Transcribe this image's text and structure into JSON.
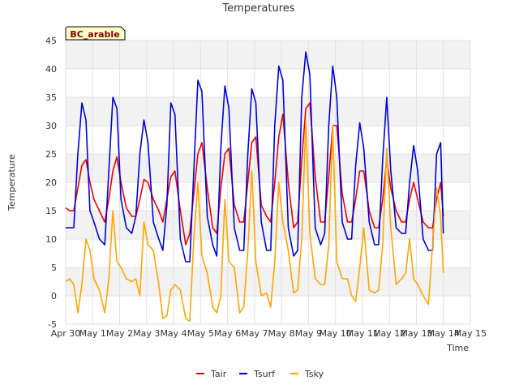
{
  "colors": {
    "Tair": "#ee0000",
    "Tsurf": "#0000dd",
    "Tsky": "#ffa500",
    "band": "#f2f2f2",
    "grid": "#e2e2e2",
    "site_label_bg": "#ffffc8"
  },
  "chart_data": {
    "type": "line",
    "title": "Temperatures",
    "xlabel": "Time",
    "ylabel": "Temperature",
    "site_label": "BC_arable",
    "xlim": [
      0,
      15
    ],
    "ylim": [
      -5,
      45
    ],
    "grid": true,
    "legend_position": "bottom",
    "x_ticks": [
      {
        "value": 0,
        "label": "Apr 30"
      },
      {
        "value": 1,
        "label": "May 1"
      },
      {
        "value": 2,
        "label": "May 2"
      },
      {
        "value": 3,
        "label": "May 3"
      },
      {
        "value": 4,
        "label": "May 4"
      },
      {
        "value": 5,
        "label": "May 5"
      },
      {
        "value": 6,
        "label": "May 6"
      },
      {
        "value": 7,
        "label": "May 7"
      },
      {
        "value": 8,
        "label": "May 8"
      },
      {
        "value": 9,
        "label": "May 9"
      },
      {
        "value": 10,
        "label": "May 10"
      },
      {
        "value": 11,
        "label": "May 11"
      },
      {
        "value": 12,
        "label": "May 12"
      },
      {
        "value": 13,
        "label": "May 13"
      },
      {
        "value": 14,
        "label": "May 14"
      },
      {
        "value": 15,
        "label": "May 15"
      }
    ],
    "y_ticks": [
      -5,
      0,
      5,
      10,
      15,
      20,
      25,
      30,
      35,
      40,
      45
    ],
    "series": [
      {
        "name": "Tair",
        "x": [
          0.0,
          0.15,
          0.3,
          0.45,
          0.6,
          0.75,
          0.9,
          1.05,
          1.25,
          1.45,
          1.6,
          1.75,
          1.9,
          2.05,
          2.25,
          2.45,
          2.6,
          2.75,
          2.9,
          3.05,
          3.25,
          3.45,
          3.6,
          3.75,
          3.9,
          4.05,
          4.25,
          4.45,
          4.6,
          4.75,
          4.9,
          5.05,
          5.25,
          5.45,
          5.6,
          5.75,
          5.9,
          6.05,
          6.25,
          6.45,
          6.6,
          6.75,
          6.9,
          7.05,
          7.25,
          7.45,
          7.6,
          7.75,
          7.9,
          8.05,
          8.25,
          8.45,
          8.6,
          8.75,
          8.9,
          9.05,
          9.25,
          9.45,
          9.6,
          9.75,
          9.9,
          10.05,
          10.25,
          10.45,
          10.6,
          10.75,
          10.9,
          11.05,
          11.25,
          11.45,
          11.6,
          11.75,
          11.9,
          12.05,
          12.25,
          12.45,
          12.6,
          12.75,
          12.9,
          13.05,
          13.25,
          13.45,
          13.6,
          13.75,
          13.9,
          14.0
        ],
        "y": [
          15.5,
          15,
          15,
          19,
          23,
          24,
          20,
          17,
          15,
          13,
          17,
          22,
          24.5,
          20,
          15.5,
          14,
          14,
          17,
          20.5,
          20,
          17,
          15,
          13,
          17,
          21,
          22,
          15,
          9,
          11,
          18,
          25,
          27,
          19,
          12,
          11,
          19,
          25,
          26,
          16,
          13,
          13,
          20,
          27,
          28,
          16,
          14,
          13,
          20,
          28,
          32,
          20,
          12,
          13,
          24,
          33,
          34,
          21,
          13,
          13,
          21,
          30,
          30,
          18,
          13,
          13,
          17,
          22,
          22,
          15,
          12,
          12,
          17,
          24,
          19,
          15,
          13,
          13,
          17,
          20,
          17,
          13,
          12,
          12,
          17,
          20,
          14
        ]
      },
      {
        "name": "Tsurf",
        "x": [
          0.0,
          0.15,
          0.3,
          0.45,
          0.6,
          0.75,
          0.9,
          1.05,
          1.25,
          1.45,
          1.6,
          1.75,
          1.9,
          2.05,
          2.25,
          2.45,
          2.6,
          2.75,
          2.9,
          3.05,
          3.25,
          3.45,
          3.6,
          3.75,
          3.9,
          4.05,
          4.25,
          4.45,
          4.6,
          4.75,
          4.9,
          5.05,
          5.25,
          5.45,
          5.6,
          5.75,
          5.9,
          6.05,
          6.25,
          6.45,
          6.6,
          6.75,
          6.9,
          7.05,
          7.25,
          7.45,
          7.6,
          7.75,
          7.9,
          8.05,
          8.25,
          8.45,
          8.6,
          8.75,
          8.9,
          9.05,
          9.25,
          9.45,
          9.6,
          9.75,
          9.9,
          10.05,
          10.25,
          10.45,
          10.6,
          10.75,
          10.9,
          11.05,
          11.25,
          11.45,
          11.6,
          11.75,
          11.9,
          12.05,
          12.25,
          12.45,
          12.6,
          12.75,
          12.9,
          13.05,
          13.25,
          13.45,
          13.6,
          13.75,
          13.9,
          14.0
        ],
        "y": [
          12,
          12,
          12,
          25,
          34,
          31,
          15,
          13,
          10,
          9,
          22,
          35,
          33,
          17,
          12,
          11,
          14,
          25,
          31,
          27,
          13,
          10,
          8,
          16,
          34,
          32,
          10,
          6,
          6,
          22,
          38,
          36,
          14,
          9,
          7,
          26,
          37,
          33,
          12,
          8,
          8,
          25,
          36.5,
          34,
          13,
          8,
          8,
          30,
          40.5,
          38,
          12,
          7,
          8,
          35,
          43,
          39,
          12,
          9,
          11,
          30,
          40.5,
          35,
          13,
          10,
          10,
          23,
          30.5,
          26,
          13,
          9,
          9,
          24,
          35,
          22,
          12,
          11,
          11,
          20,
          26.5,
          22,
          10,
          8,
          8,
          25,
          27,
          11
        ]
      },
      {
        "name": "Tsky",
        "x": [
          0.0,
          0.15,
          0.3,
          0.45,
          0.6,
          0.75,
          0.9,
          1.05,
          1.25,
          1.45,
          1.6,
          1.75,
          1.9,
          2.05,
          2.25,
          2.45,
          2.6,
          2.75,
          2.9,
          3.05,
          3.25,
          3.45,
          3.6,
          3.75,
          3.9,
          4.05,
          4.25,
          4.45,
          4.6,
          4.75,
          4.9,
          5.05,
          5.25,
          5.45,
          5.6,
          5.75,
          5.9,
          6.05,
          6.25,
          6.45,
          6.6,
          6.75,
          6.9,
          7.05,
          7.25,
          7.45,
          7.6,
          7.75,
          7.9,
          8.05,
          8.25,
          8.45,
          8.6,
          8.75,
          8.9,
          9.05,
          9.25,
          9.45,
          9.6,
          9.75,
          9.9,
          10.05,
          10.25,
          10.45,
          10.6,
          10.75,
          10.9,
          11.05,
          11.25,
          11.45,
          11.6,
          11.75,
          11.9,
          12.05,
          12.25,
          12.45,
          12.6,
          12.75,
          12.9,
          13.05,
          13.25,
          13.45,
          13.6,
          13.75,
          13.9,
          14.0
        ],
        "y": [
          2.5,
          3,
          2,
          -3,
          2,
          10,
          8,
          3,
          1,
          -3,
          3,
          15,
          6,
          5,
          3,
          2.5,
          3,
          0,
          13,
          9,
          8,
          2,
          -4,
          -3.5,
          1,
          2,
          1,
          -4,
          -4.5,
          10,
          20,
          7,
          4,
          -2,
          -3,
          0,
          17,
          6,
          5,
          -3,
          -2,
          8,
          22,
          6,
          0,
          0.5,
          -2,
          6,
          20,
          13,
          8,
          0.5,
          1,
          10,
          31,
          11,
          3,
          2,
          2,
          9,
          30,
          6,
          3,
          3,
          0,
          -1,
          5,
          12,
          1,
          0.5,
          1,
          9,
          26,
          12,
          2,
          3,
          4,
          10,
          3,
          2,
          0,
          -1.5,
          9,
          19,
          14,
          4
        ]
      }
    ]
  }
}
